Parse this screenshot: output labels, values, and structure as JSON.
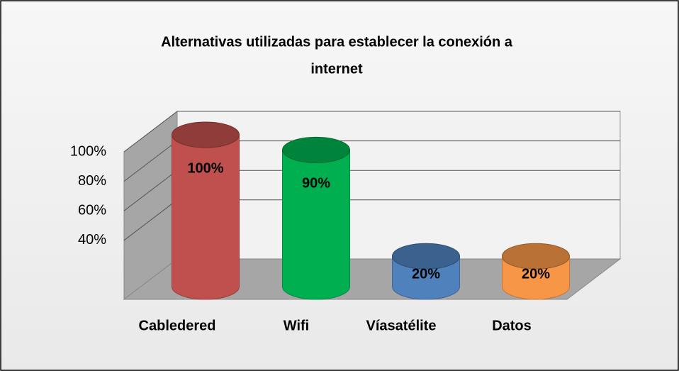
{
  "chart_data": {
    "type": "bar3d",
    "title": [
      "Alternativas utilizadas para establecer la conexión a",
      "internet"
    ],
    "categories": [
      "Cabledered",
      "Wifi",
      "Víasatélite",
      "Datos"
    ],
    "values": [
      100,
      90,
      20,
      20
    ],
    "value_labels": [
      "100%",
      "90%",
      "20%",
      "20%"
    ],
    "colors": [
      "#c0504d",
      "#00b050",
      "#4f81bd",
      "#f79646"
    ],
    "ylim": [
      0,
      100
    ],
    "yticks": [
      {
        "value": 40,
        "label": "40%"
      },
      {
        "value": 60,
        "label": "60%"
      },
      {
        "value": 80,
        "label": "80%"
      },
      {
        "value": 100,
        "label": "100%"
      }
    ],
    "grid": true
  }
}
